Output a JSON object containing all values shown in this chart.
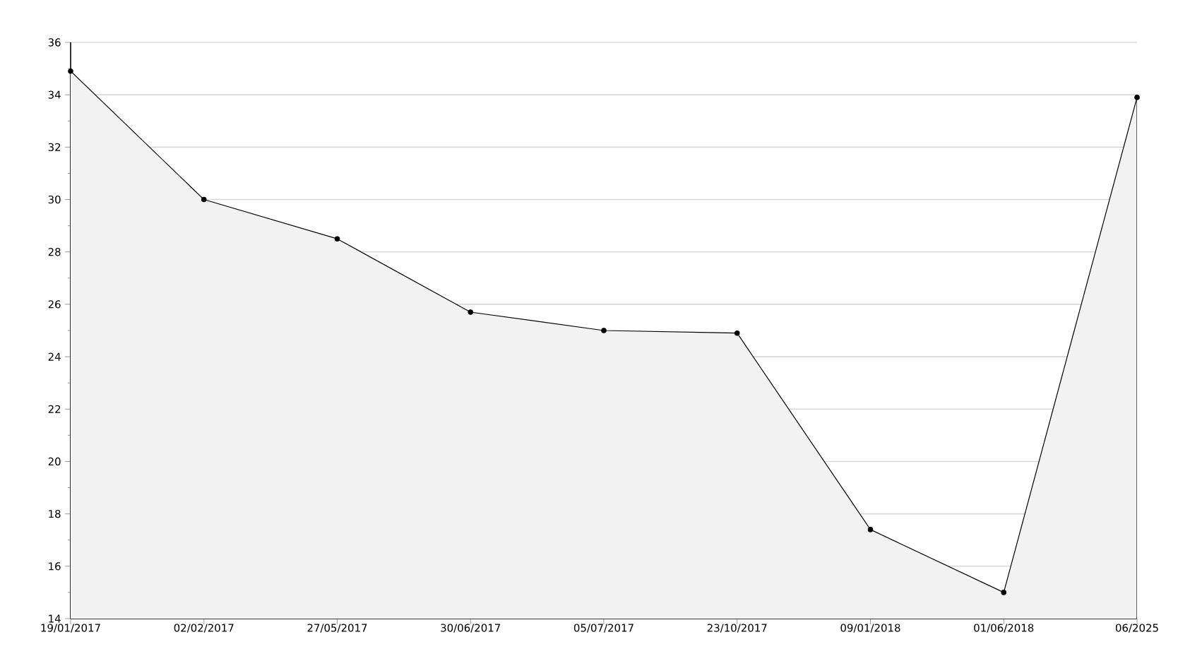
{
  "chart_data": {
    "type": "area",
    "categories": [
      "19/01/2017",
      "02/02/2017",
      "27/05/2017",
      "30/06/2017",
      "05/07/2017",
      "23/10/2017",
      "09/01/2018",
      "01/06/2018",
      "06/2025"
    ],
    "series": [
      {
        "color": "#000000",
        "values": [
          34.9,
          30,
          28.5,
          25.7,
          25.0,
          24.9,
          17.4,
          15.0,
          33.9
        ]
      }
    ],
    "ylim": [
      14,
      36
    ],
    "yticks": [
      14,
      16,
      18,
      20,
      22,
      24,
      26,
      28,
      30,
      32,
      34,
      36
    ],
    "grid": "y",
    "marker": "circle",
    "line_style": "solid"
  }
}
